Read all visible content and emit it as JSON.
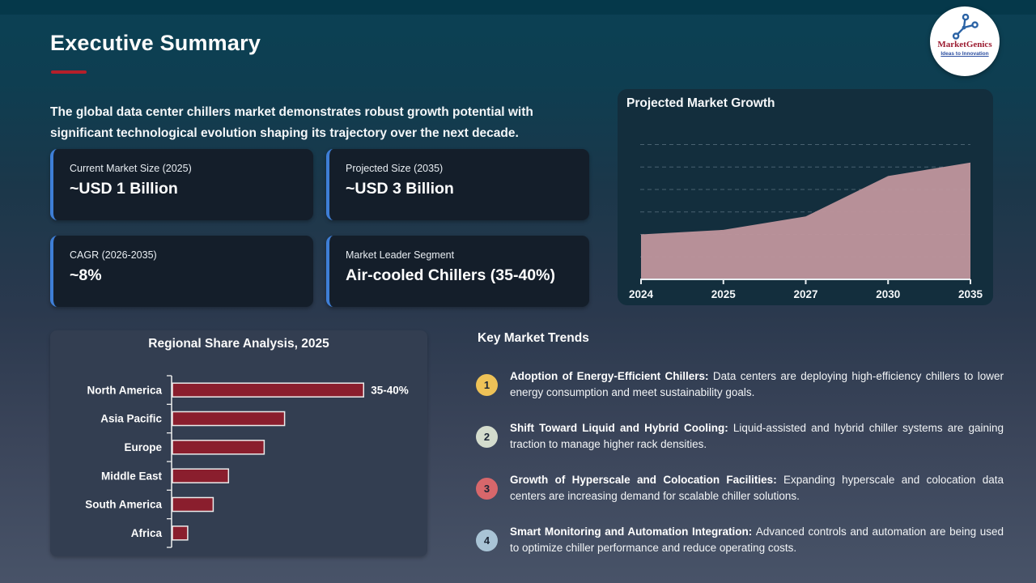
{
  "header": {
    "title": "Executive Summary",
    "underline_color": "#b51f2a",
    "intro_line1": "The global data center chillers market demonstrates robust growth potential with",
    "intro_line2": "significant technological evolution shaping its trajectory over the next decade."
  },
  "logo": {
    "brand": "MarketGenics",
    "tagline": "Ideas to Innovation",
    "icon": "network-nodes-icon",
    "icon_color": "#2b63a5",
    "brand_color": "#9b1b30"
  },
  "stats": {
    "accent_color": "#3e7ed6",
    "cards": [
      {
        "label": "Current Market Size (2025)",
        "value": "~USD 1 Billion"
      },
      {
        "label": "Projected Size (2035)",
        "value": "~USD 3 Billion"
      },
      {
        "label": "CAGR (2026-2035)",
        "value": "~8%"
      },
      {
        "label": "Market Leader Segment",
        "value": "Air-cooled Chillers (35-40%)"
      }
    ]
  },
  "chart_data": [
    {
      "type": "area",
      "title": "Projected Market Growth",
      "x": [
        "2024",
        "2025",
        "2027",
        "2030",
        "2035"
      ],
      "values": [
        1.0,
        1.1,
        1.4,
        2.3,
        2.6
      ],
      "unit": "USD Billion",
      "ylim": [
        0,
        3.5
      ],
      "gridlines": [
        0.5,
        1.0,
        1.5,
        2.0,
        2.5,
        3.0
      ],
      "grid_style": "dashed horizontal",
      "fill_color": "#c0969d",
      "axis_color": "#e9eef2"
    },
    {
      "type": "bar",
      "title": "Regional Share Analysis, 2025",
      "orientation": "horizontal",
      "categories": [
        "North America",
        "Asia Pacific",
        "Europe",
        "Middle East",
        "South America",
        "Africa"
      ],
      "values": [
        37.5,
        22,
        18,
        11,
        8,
        3
      ],
      "value_labels": [
        "35-40%",
        "",
        "",
        "",
        "",
        ""
      ],
      "unit": "percent share",
      "bar_color": "#8a1e2d",
      "bar_border_color": "#ebebeb"
    }
  ],
  "trends": {
    "heading": "Key Market Trends",
    "items": [
      {
        "number": "1",
        "badge_color": "#eec257",
        "title": "Adoption of Energy-Efficient Chillers:",
        "description": "Data centers are deploying high-efficiency chillers to lower energy consumption and meet sustainability goals."
      },
      {
        "number": "2",
        "badge_color": "#d4dccd",
        "title": "Shift Toward Liquid and Hybrid Cooling:",
        "description": "Liquid-assisted and hybrid chiller systems are gaining traction to manage higher rack densities."
      },
      {
        "number": "3",
        "badge_color": "#d7676b",
        "title": "Growth of Hyperscale and Colocation Facilities:",
        "description": "Expanding hyperscale and colocation data centers are increasing demand for scalable chiller solutions."
      },
      {
        "number": "4",
        "badge_color": "#a9c4d6",
        "title": "Smart Monitoring and Automation Integration:",
        "description": "Advanced controls and automation are being used to optimize chiller performance and reduce operating costs."
      }
    ]
  }
}
